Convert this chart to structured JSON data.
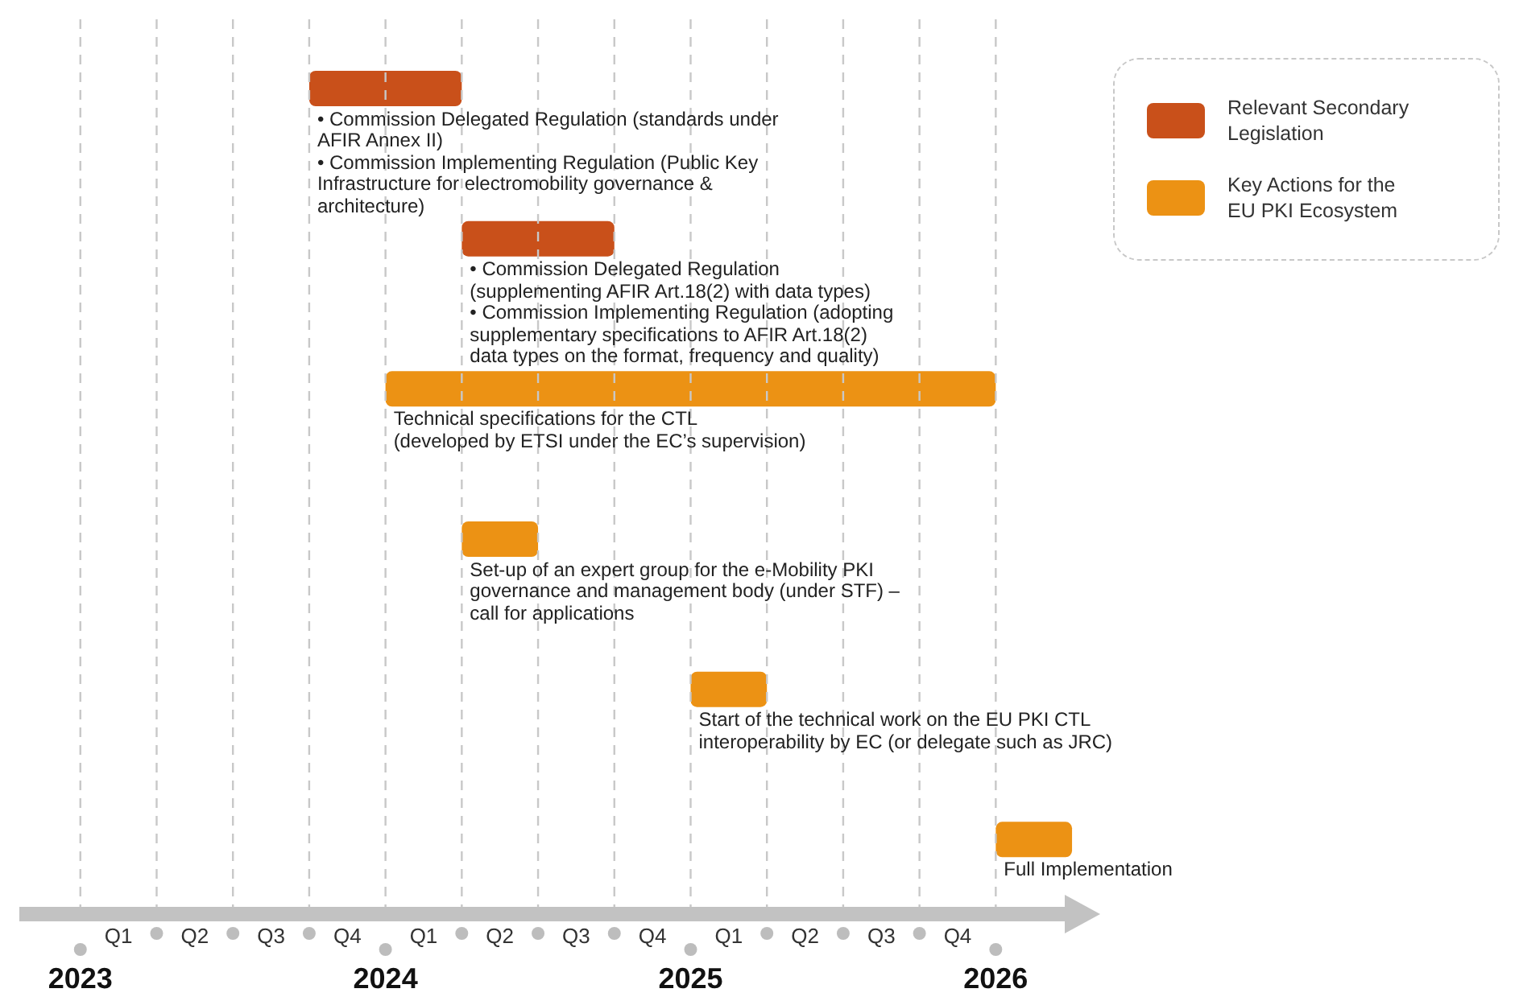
{
  "chart_data": {
    "type": "bar",
    "orientation": "horizontal",
    "categories": [
      null,
      null,
      null,
      null,
      null,
      null
    ],
    "series": [
      {
        "name": "Relevant Secondary Legislation",
        "color": "#c9501a",
        "values": [
          0.5,
          0.5,
          null,
          null,
          null,
          null
        ],
        "base": [
          2023.75,
          2024.25,
          null,
          null,
          null,
          null
        ]
      },
      {
        "name": "Key Actions for the EU PKI Ecosystem",
        "color": "#ec9214",
        "values": [
          null,
          null,
          2,
          0.25,
          0.25,
          0.25
        ],
        "base": [
          null,
          null,
          2024,
          2024.25,
          2025,
          2026
        ]
      }
    ],
    "xlim": [
      2022.8,
      2026.3
    ],
    "xticks": [
      2023,
      {
        "value": 2023.25,
        "label": null
      },
      {
        "value": 2023.5,
        "label": null
      },
      {
        "value": 2023.75,
        "label": null
      },
      2024,
      {
        "value": 2024.25,
        "label": null
      },
      {
        "value": 2024.5,
        "label": null
      },
      {
        "value": 2024.75,
        "label": null
      },
      2025,
      {
        "value": 2025.25,
        "label": null
      },
      {
        "value": 2025.5,
        "label": null
      },
      {
        "value": 2025.75,
        "label": null
      },
      2026
    ],
    "grid": "x",
    "legend": "top right",
    "annotations": [
      "• Commission Delegated Regulation (standards under\nAFIR Annex II)",
      "• Commission Implementing Regulation (Public Key\nInfrastructure for electromobility governance &\narchitecture)",
      "• Commission Delegated Regulation\n(supplementing AFIR Art.18(2) with data types)",
      "• Commission Implementing Regulation (adopting\nsupplementary specifications to AFIR Art.18(2)\ndata types on the format, frequency and quality)",
      "Technical specifications for the CTL\n(developed by ETSI under the EC’s supervision)",
      "Set-up of an expert group for the e-Mobility PKI\ngovernance and management body (under STF) –\ncall for applications",
      "Start of the technical work on the EU PKI CTL\ninteroperability by EC (or delegate such as JRC)",
      "Full Implementation",
      "Q1",
      "Q2",
      "Q3",
      "Q4",
      "Q1",
      "Q2",
      "Q3",
      "Q4",
      "Q1",
      "Q2",
      "Q3",
      "Q4"
    ]
  }
}
